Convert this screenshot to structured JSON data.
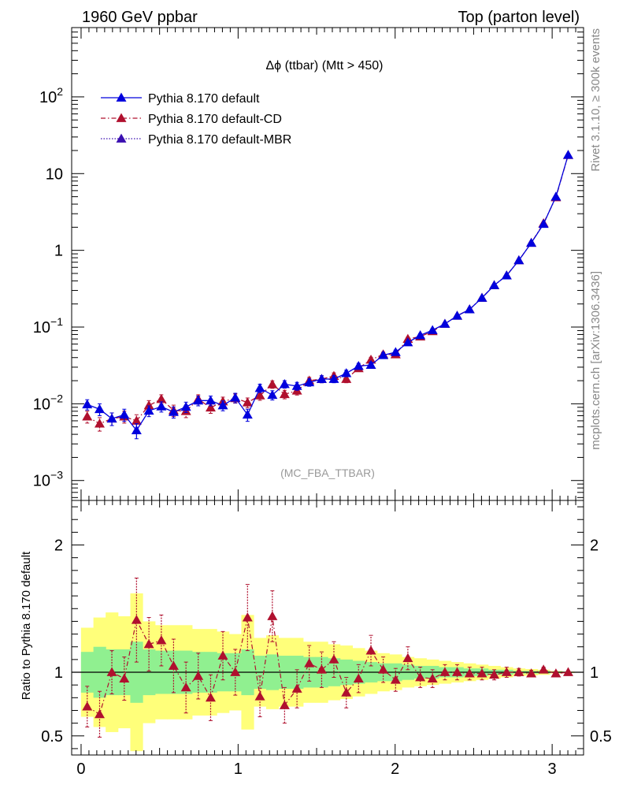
{
  "header": {
    "left_title": "1960 GeV ppbar",
    "right_title": "Top (parton level)"
  },
  "side_labels": {
    "rivet": "Rivet 3.1.10, ≥ 300k events",
    "mcplots": "mcplots.cern.ch [arXiv:1306.3436]"
  },
  "plot": {
    "title": "Δϕ (ttbar) (Mtt > 450)",
    "watermark": "(MC_FBA_TTBAR)",
    "ratio_ylabel": "Ratio to Pythia 8.170 default"
  },
  "legend": [
    {
      "label": "Pythia 8.170 default",
      "color": "#0000dd",
      "style": "solid"
    },
    {
      "label": "Pythia 8.170 default-CD",
      "color": "#b0102e",
      "style": "dashdot"
    },
    {
      "label": "Pythia 8.170 default-MBR",
      "color": "#3a0fb0",
      "style": "dotted"
    }
  ],
  "chart_data": [
    {
      "type": "line",
      "yscale": "log",
      "xlim": [
        -0.06,
        3.2
      ],
      "ylim": [
        0.00055,
        800
      ],
      "y_ticks": [
        {
          "v": 0.001,
          "base": "10",
          "exp": "−3"
        },
        {
          "v": 0.01,
          "base": "10",
          "exp": "−2"
        },
        {
          "v": 0.1,
          "base": "10",
          "exp": "−1"
        },
        {
          "v": 1,
          "base": "1",
          "exp": ""
        },
        {
          "v": 10,
          "base": "10",
          "exp": ""
        },
        {
          "v": 100,
          "base": "10",
          "exp": "2"
        }
      ],
      "x": [
        0.039,
        0.118,
        0.196,
        0.275,
        0.353,
        0.432,
        0.511,
        0.589,
        0.668,
        0.746,
        0.825,
        0.903,
        0.982,
        1.06,
        1.139,
        1.218,
        1.296,
        1.375,
        1.453,
        1.532,
        1.61,
        1.689,
        1.767,
        1.846,
        1.924,
        2.003,
        2.081,
        2.16,
        2.238,
        2.317,
        2.395,
        2.474,
        2.553,
        2.631,
        2.71,
        2.788,
        2.867,
        2.945,
        3.024,
        3.102
      ],
      "series": [
        {
          "name": "Pythia 8.170 default",
          "color": "#0000dd",
          "values": [
            0.0098,
            0.0085,
            0.0064,
            0.0072,
            0.0045,
            0.0081,
            0.0092,
            0.0078,
            0.0091,
            0.011,
            0.011,
            0.0095,
            0.012,
            0.0072,
            0.016,
            0.013,
            0.018,
            0.017,
            0.019,
            0.021,
            0.021,
            0.025,
            0.031,
            0.032,
            0.043,
            0.047,
            0.063,
            0.078,
            0.091,
            0.11,
            0.14,
            0.17,
            0.24,
            0.35,
            0.47,
            0.74,
            1.25,
            2.2,
            5.0,
            17.5
          ],
          "errors": [
            0.0015,
            0.0015,
            0.0012,
            0.0013,
            0.001,
            0.0013,
            0.0014,
            0.0013,
            0.0014,
            0.0016,
            0.0016,
            0.0014,
            0.0017,
            0.0013,
            0.002,
            0.0018,
            0.002,
            0.002,
            0.0021,
            0.0022,
            0.0022,
            0.0024,
            0.0027,
            0.0027,
            0.0031,
            0.0032,
            0.0037,
            0.0042,
            0.0045,
            0.005,
            0.006,
            0.007,
            0.008,
            0.01,
            0.012,
            0.015,
            0.02,
            0.03,
            0.05,
            0.1
          ]
        },
        {
          "name": "Pythia 8.170 default-CD",
          "color": "#b0102e",
          "values": [
            0.0068,
            0.0055,
            0.0064,
            0.0068,
            0.006,
            0.0095,
            0.0115,
            0.0082,
            0.008,
            0.0115,
            0.0089,
            0.0107,
            0.0118,
            0.0104,
            0.0128,
            0.0179,
            0.0133,
            0.0148,
            0.02,
            0.021,
            0.023,
            0.021,
            0.029,
            0.0375,
            0.044,
            0.044,
            0.07,
            0.075,
            0.088,
            0.11,
            0.14,
            0.17,
            0.24,
            0.35,
            0.47,
            0.74,
            1.25,
            2.25,
            4.9,
            17.4
          ],
          "errors": [
            0.0012,
            0.0011,
            0.0012,
            0.0012,
            0.0012,
            0.0015,
            0.0016,
            0.0014,
            0.0014,
            0.0016,
            0.0014,
            0.0015,
            0.0016,
            0.0015,
            0.0017,
            0.002,
            0.0017,
            0.0018,
            0.0021,
            0.0022,
            0.0023,
            0.0022,
            0.0026,
            0.0029,
            0.0031,
            0.0031,
            0.0039,
            0.0041,
            0.0044,
            0.005,
            0.006,
            0.007,
            0.008,
            0.01,
            0.012,
            0.015,
            0.02,
            0.03,
            0.05,
            0.1
          ]
        }
      ]
    },
    {
      "type": "line",
      "xlim": [
        -0.06,
        3.2
      ],
      "ylim": [
        0.35,
        2.35
      ],
      "x_ticks": [
        0,
        1,
        2,
        3
      ],
      "y_ticks": [
        {
          "v": 0.5,
          "label": "0.5"
        },
        {
          "v": 1,
          "label": "1"
        },
        {
          "v": 2,
          "label": "2"
        }
      ],
      "reference_line": 1,
      "bands": {
        "inner_color": "#90f090",
        "outer_color": "#ffff7a",
        "inner": [
          [
            0.84,
            1.16
          ],
          [
            0.8,
            1.2
          ],
          [
            0.82,
            1.18
          ],
          [
            0.82,
            1.18
          ],
          [
            0.76,
            1.24
          ],
          [
            0.82,
            1.18
          ],
          [
            0.83,
            1.17
          ],
          [
            0.83,
            1.17
          ],
          [
            0.83,
            1.17
          ],
          [
            0.84,
            1.16
          ],
          [
            0.84,
            1.16
          ],
          [
            0.85,
            1.15
          ],
          [
            0.85,
            1.15
          ],
          [
            0.82,
            1.18
          ],
          [
            0.87,
            1.13
          ],
          [
            0.86,
            1.14
          ],
          [
            0.87,
            1.13
          ],
          [
            0.87,
            1.13
          ],
          [
            0.88,
            1.12
          ],
          [
            0.88,
            1.12
          ],
          [
            0.89,
            1.11
          ],
          [
            0.9,
            1.1
          ],
          [
            0.91,
            1.09
          ],
          [
            0.92,
            1.08
          ],
          [
            0.93,
            1.07
          ],
          [
            0.93,
            1.07
          ],
          [
            0.94,
            1.06
          ],
          [
            0.95,
            1.05
          ],
          [
            0.95,
            1.05
          ],
          [
            0.96,
            1.04
          ],
          [
            0.96,
            1.04
          ],
          [
            0.97,
            1.03
          ],
          [
            0.97,
            1.03
          ],
          [
            0.98,
            1.02
          ],
          [
            0.98,
            1.02
          ],
          [
            0.99,
            1.01
          ],
          [
            0.99,
            1.01
          ],
          [
            0.99,
            1.01
          ],
          [
            0.995,
            1.005
          ],
          [
            0.997,
            1.003
          ]
        ],
        "outer": [
          [
            0.65,
            1.35
          ],
          [
            0.57,
            1.43
          ],
          [
            0.53,
            1.47
          ],
          [
            0.56,
            1.44
          ],
          [
            0.38,
            1.62
          ],
          [
            0.6,
            1.4
          ],
          [
            0.63,
            1.37
          ],
          [
            0.63,
            1.37
          ],
          [
            0.63,
            1.37
          ],
          [
            0.66,
            1.34
          ],
          [
            0.66,
            1.34
          ],
          [
            0.68,
            1.32
          ],
          [
            0.7,
            1.3
          ],
          [
            0.55,
            1.45
          ],
          [
            0.73,
            1.27
          ],
          [
            0.71,
            1.29
          ],
          [
            0.73,
            1.27
          ],
          [
            0.73,
            1.27
          ],
          [
            0.76,
            1.24
          ],
          [
            0.76,
            1.24
          ],
          [
            0.78,
            1.22
          ],
          [
            0.79,
            1.21
          ],
          [
            0.81,
            1.19
          ],
          [
            0.83,
            1.17
          ],
          [
            0.85,
            1.15
          ],
          [
            0.86,
            1.14
          ],
          [
            0.88,
            1.12
          ],
          [
            0.89,
            1.11
          ],
          [
            0.9,
            1.1
          ],
          [
            0.91,
            1.09
          ],
          [
            0.92,
            1.08
          ],
          [
            0.93,
            1.07
          ],
          [
            0.94,
            1.06
          ],
          [
            0.95,
            1.05
          ],
          [
            0.96,
            1.04
          ],
          [
            0.97,
            1.03
          ],
          [
            0.975,
            1.025
          ],
          [
            0.98,
            1.02
          ],
          [
            0.99,
            1.01
          ],
          [
            0.995,
            1.005
          ]
        ]
      },
      "series": [
        {
          "name": "Pythia 8.170 default-CD",
          "color": "#b0102e",
          "values": [
            0.73,
            0.67,
            1.0,
            0.95,
            1.41,
            1.22,
            1.25,
            1.05,
            0.88,
            0.97,
            0.8,
            1.13,
            1.0,
            1.43,
            0.81,
            1.44,
            0.74,
            0.87,
            1.07,
            1.02,
            1.1,
            0.84,
            0.95,
            1.17,
            1.02,
            0.94,
            1.11,
            0.96,
            0.95,
            1.0,
            1.0,
            0.99,
            0.99,
            0.98,
            1.0,
            1.0,
            0.99,
            1.02,
            0.99,
            1.0
          ],
          "errors": [
            0.16,
            0.18,
            0.17,
            0.17,
            0.33,
            0.21,
            0.2,
            0.21,
            0.2,
            0.18,
            0.18,
            0.19,
            0.18,
            0.26,
            0.16,
            0.2,
            0.14,
            0.15,
            0.14,
            0.14,
            0.14,
            0.12,
            0.11,
            0.12,
            0.1,
            0.09,
            0.09,
            0.08,
            0.07,
            0.06,
            0.06,
            0.05,
            0.05,
            0.04,
            0.04,
            0.03,
            0.025,
            0.02,
            0.015,
            0.01
          ]
        }
      ]
    }
  ]
}
